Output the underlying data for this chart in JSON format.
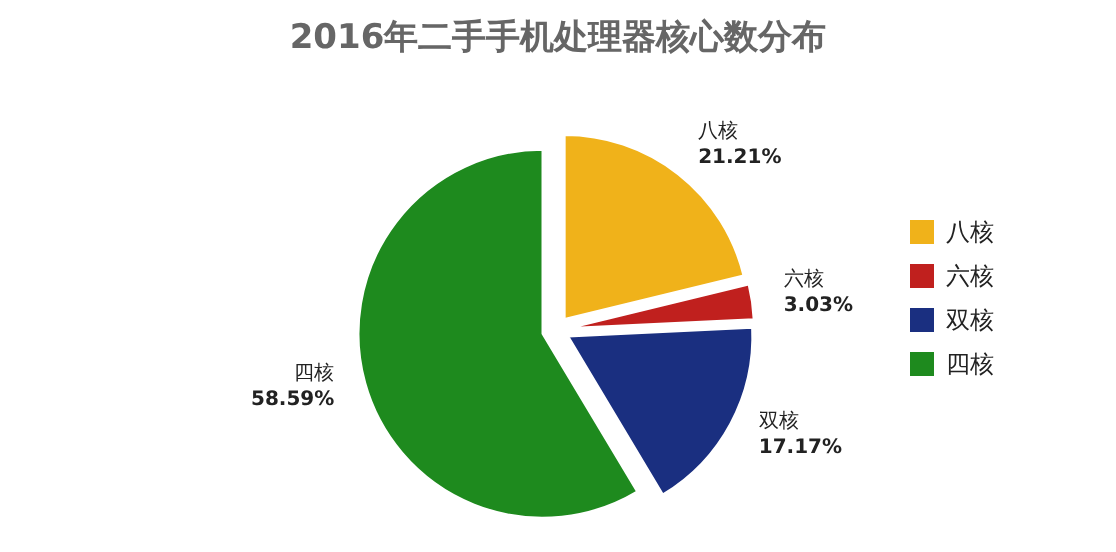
{
  "chart_data": {
    "type": "pie",
    "title": "2016年二手手机处理器核心数分布",
    "categories": [
      "八核",
      "六核",
      "双核",
      "四核"
    ],
    "values": [
      21.21,
      3.03,
      17.17,
      58.59
    ],
    "value_labels": [
      "21.21%",
      "3.03%",
      "17.17%",
      "58.59%"
    ],
    "colors": [
      "#f0b21a",
      "#c0201e",
      "#1a2f80",
      "#1e8a1e"
    ],
    "legend": "right"
  }
}
